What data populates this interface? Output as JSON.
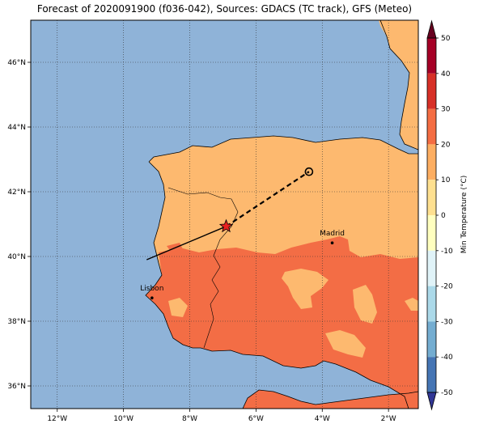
{
  "title": "Forecast of 2020091900 (f036-042), Sources: GDACS (TC track), GFS (Meteo)",
  "map": {
    "lon_range": [
      -12.8,
      -1.1
    ],
    "lat_range": [
      35.3,
      47.3
    ],
    "xticks": [
      {
        "value": -12,
        "label": "12°W"
      },
      {
        "value": -10,
        "label": "10°W"
      },
      {
        "value": -8,
        "label": "8°W"
      },
      {
        "value": -6,
        "label": "6°W"
      },
      {
        "value": -4,
        "label": "4°W"
      },
      {
        "value": -2,
        "label": "2°W"
      }
    ],
    "yticks": [
      {
        "value": 36,
        "label": "36°N"
      },
      {
        "value": 38,
        "label": "38°N"
      },
      {
        "value": 40,
        "label": "40°N"
      },
      {
        "value": 42,
        "label": "42°N"
      },
      {
        "value": 44,
        "label": "44°N"
      },
      {
        "value": 46,
        "label": "46°N"
      }
    ],
    "colors": {
      "ocean": "#8fb3d8",
      "band_10_20": "#fdb96f",
      "band_20_30": "#f36d45",
      "coast": "#000000"
    }
  },
  "cities": [
    {
      "name": "Madrid",
      "lon": -3.7,
      "lat": 40.42
    },
    {
      "name": "Lisbon",
      "lon": -9.14,
      "lat": 38.72
    }
  ],
  "track": {
    "past": [
      [
        -9.3,
        39.9
      ],
      [
        -6.9,
        40.93
      ]
    ],
    "forecast": [
      [
        -6.9,
        40.93
      ],
      [
        -4.4,
        42.62
      ]
    ],
    "current_position": {
      "lon": -6.9,
      "lat": 40.93
    },
    "forecast_position": {
      "lon": -4.4,
      "lat": 42.62
    }
  },
  "colorbar": {
    "label": "Min Temperature (°C)",
    "ticks": [
      50,
      40,
      30,
      20,
      10,
      0,
      -10,
      -20,
      -30,
      -40,
      -50
    ],
    "colors": [
      "#67001f",
      "#b2182b",
      "#d6604d",
      "#f4a582",
      "#fddbc7",
      "#f7f7f7",
      "#d1e5f0",
      "#92c5de",
      "#4393c3",
      "#2166ac",
      "#053061"
    ],
    "bands": [
      {
        "from": 40,
        "to": 50,
        "color": "#a50026"
      },
      {
        "from": 30,
        "to": 40,
        "color": "#d73027"
      },
      {
        "from": 20,
        "to": 30,
        "color": "#f46d43"
      },
      {
        "from": 10,
        "to": 20,
        "color": "#fdae61"
      },
      {
        "from": 0,
        "to": 10,
        "color": "#fee090"
      },
      {
        "from": -10,
        "to": 0,
        "color": "#ffffbf"
      },
      {
        "from": -20,
        "to": -10,
        "color": "#e0f3f8"
      },
      {
        "from": -30,
        "to": -20,
        "color": "#abd9e9"
      },
      {
        "from": -40,
        "to": -30,
        "color": "#74add1"
      },
      {
        "from": -50,
        "to": -40,
        "color": "#4575b4"
      }
    ],
    "extend_max_color": "#67001f",
    "extend_min_color": "#313695"
  }
}
